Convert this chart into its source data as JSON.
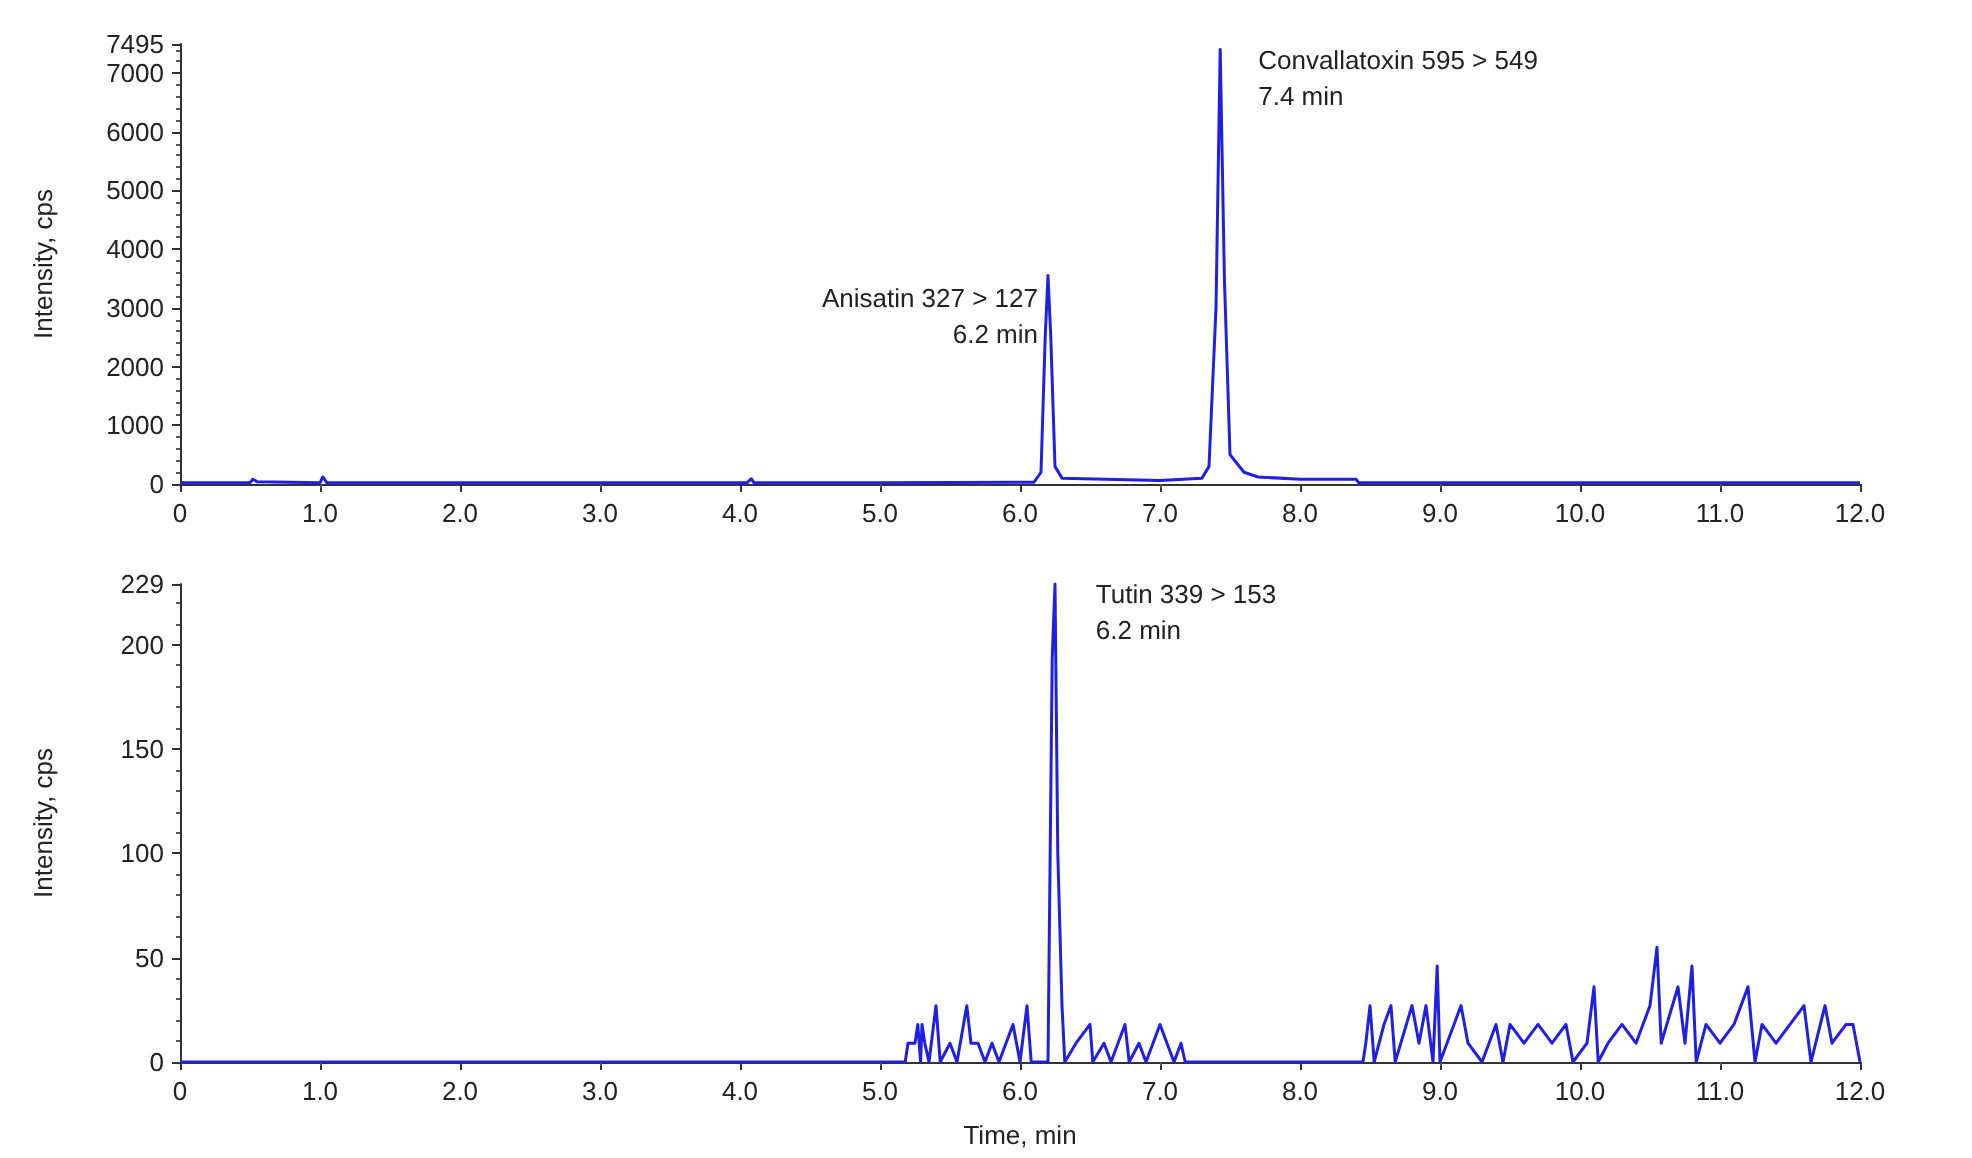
{
  "chart_data": [
    {
      "type": "line",
      "ylabel": "Intensity, cps",
      "marker": "none",
      "line_style": "solid",
      "grid": false,
      "xlim": [
        0,
        12
      ],
      "xticks": [
        0,
        {
          "value": 1,
          "label": "1.0"
        },
        {
          "value": 2,
          "label": "2.0"
        },
        {
          "value": 3,
          "label": "3.0"
        },
        {
          "value": 4,
          "label": "4.0"
        },
        {
          "value": 5,
          "label": "5.0"
        },
        {
          "value": 6,
          "label": "6.0"
        },
        {
          "value": 7,
          "label": "7.0"
        },
        {
          "value": 8,
          "label": "8.0"
        },
        {
          "value": 9,
          "label": "9.0"
        },
        {
          "value": 10,
          "label": "10.0"
        },
        {
          "value": 11,
          "label": "11.0"
        },
        {
          "value": 12,
          "label": "12.0"
        }
      ],
      "ylim": [
        0,
        7495
      ],
      "yticks": [
        0,
        1000,
        2000,
        3000,
        4000,
        5000,
        6000,
        7000,
        7495
      ],
      "series": [
        {
          "color": "#1f1fe6",
          "x": [
            0,
            0.5,
            0.52,
            0.55,
            1.0,
            1.02,
            1.05,
            2.0,
            3.0,
            4.05,
            4.08,
            4.1,
            5.0,
            6.1,
            6.15,
            6.18,
            6.2,
            6.22,
            6.25,
            6.3,
            7.0,
            7.3,
            7.35,
            7.4,
            7.43,
            7.46,
            7.5,
            7.6,
            7.7,
            8.0,
            8.4,
            8.42,
            12.0
          ],
          "values": [
            20,
            20,
            80,
            40,
            20,
            120,
            20,
            20,
            20,
            20,
            90,
            20,
            20,
            30,
            200,
            2500,
            3550,
            2500,
            300,
            100,
            60,
            100,
            300,
            3000,
            7400,
            3500,
            500,
            200,
            120,
            80,
            80,
            20,
            20
          ]
        }
      ],
      "annotations": [
        {
          "text": "Anisatin 327 > 127\n6.2 min",
          "x": 6.2,
          "y": 3550
        },
        {
          "text": "Convallatoxin 595 > 549\n7.4 min",
          "x": 7.43,
          "y": 7400
        }
      ]
    },
    {
      "type": "line",
      "xlabel": "Time, min",
      "ylabel": "Intensity, cps",
      "marker": "none",
      "line_style": "solid",
      "grid": false,
      "xlim": [
        0,
        12
      ],
      "xticks": [
        0,
        {
          "value": 1,
          "label": "1.0"
        },
        {
          "value": 2,
          "label": "2.0"
        },
        {
          "value": 3,
          "label": "3.0"
        },
        {
          "value": 4,
          "label": "4.0"
        },
        {
          "value": 5,
          "label": "5.0"
        },
        {
          "value": 6,
          "label": "6.0"
        },
        {
          "value": 7,
          "label": "7.0"
        },
        {
          "value": 8,
          "label": "8.0"
        },
        {
          "value": 9,
          "label": "9.0"
        },
        {
          "value": 10,
          "label": "10.0"
        },
        {
          "value": 11,
          "label": "11.0"
        },
        {
          "value": 12,
          "label": "12.0"
        }
      ],
      "ylim": [
        0,
        229
      ],
      "yticks": [
        0,
        50,
        100,
        150,
        200,
        229
      ],
      "series": [
        {
          "color": "#1f1fe6",
          "x": [
            0,
            5.18,
            5.2,
            5.25,
            5.27,
            5.29,
            5.3,
            5.32,
            5.35,
            5.4,
            5.43,
            5.5,
            5.55,
            5.62,
            5.65,
            5.7,
            5.75,
            5.8,
            5.85,
            5.9,
            5.95,
            6.0,
            6.05,
            6.08,
            6.2,
            6.23,
            6.25,
            6.27,
            6.3,
            6.32,
            6.4,
            6.5,
            6.52,
            6.6,
            6.65,
            6.75,
            6.78,
            6.85,
            6.9,
            7.0,
            7.05,
            7.1,
            7.15,
            7.18,
            8.45,
            8.47,
            8.5,
            8.53,
            8.6,
            8.65,
            8.68,
            8.8,
            8.85,
            8.9,
            8.95,
            8.98,
            9.0,
            9.1,
            9.15,
            9.2,
            9.3,
            9.4,
            9.45,
            9.5,
            9.6,
            9.7,
            9.8,
            9.9,
            9.95,
            10.05,
            10.1,
            10.13,
            10.2,
            10.3,
            10.4,
            10.5,
            10.55,
            10.58,
            10.7,
            10.75,
            10.8,
            10.83,
            10.9,
            11.0,
            11.1,
            11.2,
            11.25,
            11.3,
            11.4,
            11.5,
            11.6,
            11.65,
            11.75,
            11.8,
            11.9,
            11.95,
            12.0
          ],
          "values": [
            0,
            0,
            9,
            9,
            18,
            0,
            18,
            9,
            0,
            27,
            0,
            9,
            0,
            27,
            9,
            9,
            0,
            9,
            0,
            9,
            18,
            0,
            27,
            0,
            0,
            193,
            229,
            100,
            27,
            0,
            9,
            18,
            0,
            9,
            0,
            18,
            0,
            9,
            0,
            18,
            9,
            0,
            9,
            0,
            0,
            9,
            27,
            0,
            18,
            27,
            0,
            27,
            9,
            27,
            0,
            46,
            0,
            18,
            27,
            9,
            0,
            18,
            0,
            18,
            9,
            18,
            9,
            18,
            0,
            9,
            36,
            0,
            9,
            18,
            9,
            27,
            55,
            9,
            36,
            9,
            46,
            0,
            18,
            9,
            18,
            36,
            0,
            18,
            9,
            18,
            27,
            0,
            27,
            9,
            18,
            18,
            0
          ]
        }
      ],
      "annotations": [
        {
          "text": "Tutin 339 > 153\n6.2 min",
          "x": 6.27,
          "y": 229
        }
      ]
    }
  ]
}
